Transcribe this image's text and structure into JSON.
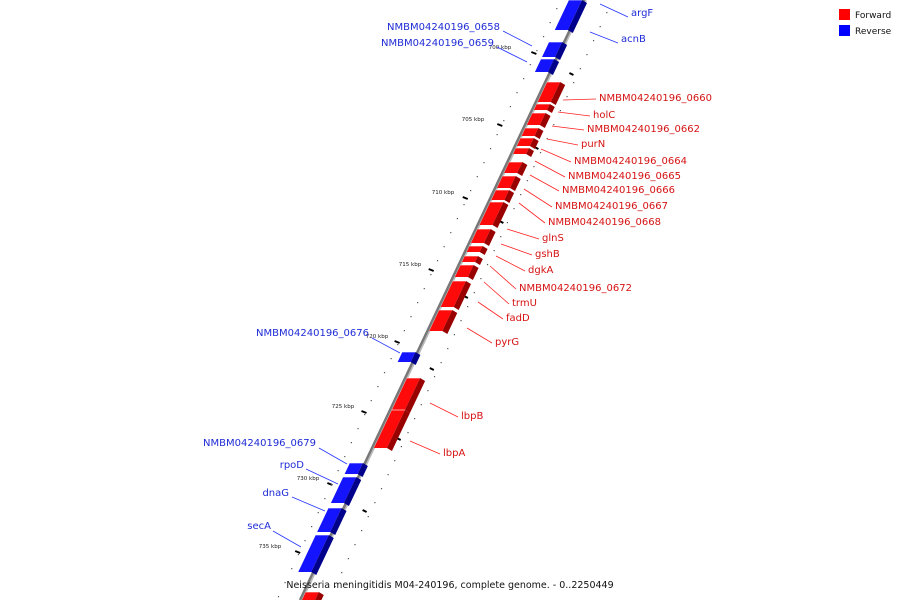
{
  "caption": "Neisseria meningitidis M04-240196, complete genome. - 0..2250449",
  "legend": [
    {
      "label": "Forward",
      "color": "#ff0000"
    },
    {
      "label": "Reverse",
      "color": "#0000ff"
    }
  ],
  "ticks": [
    "700 kbp",
    "705 kbp",
    "710 kbp",
    "715 kbp",
    "720 kbp",
    "725 kbp",
    "730 kbp",
    "735 kbp"
  ],
  "genes": {
    "reverse": [
      {
        "label": "argF"
      },
      {
        "label": "acnB"
      },
      {
        "label": "NMBM04240196_0658"
      },
      {
        "label": "NMBM04240196_0659"
      },
      {
        "label": "NMBM04240196_0676"
      },
      {
        "label": "NMBM04240196_0679"
      },
      {
        "label": "rpoD"
      },
      {
        "label": "dnaG"
      },
      {
        "label": "secA"
      }
    ],
    "forward": [
      {
        "label": "NMBM04240196_0660"
      },
      {
        "label": "holC"
      },
      {
        "label": "NMBM04240196_0662"
      },
      {
        "label": "purN"
      },
      {
        "label": "NMBM04240196_0664"
      },
      {
        "label": "NMBM04240196_0665"
      },
      {
        "label": "NMBM04240196_0666"
      },
      {
        "label": "NMBM04240196_0667"
      },
      {
        "label": "NMBM04240196_0668"
      },
      {
        "label": "glnS"
      },
      {
        "label": "gshB"
      },
      {
        "label": "dgkA"
      },
      {
        "label": "NMBM04240196_0672"
      },
      {
        "label": "trmU"
      },
      {
        "label": "fadD"
      },
      {
        "label": "pyrG"
      },
      {
        "label": "lbpB"
      },
      {
        "label": "lbpA"
      }
    ]
  }
}
